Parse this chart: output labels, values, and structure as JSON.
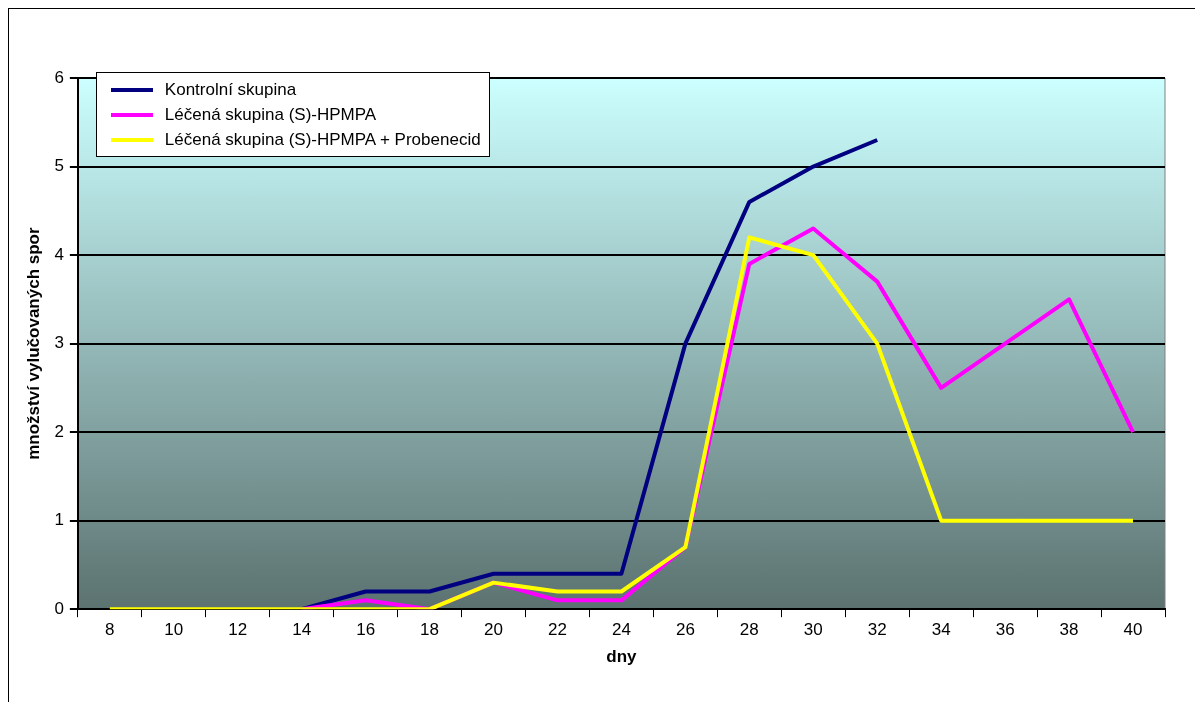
{
  "chart_data": {
    "type": "line",
    "xlabel": "dny",
    "ylabel": "množství vylučovaných spor",
    "categories": [
      "8",
      "10",
      "12",
      "14",
      "16",
      "18",
      "20",
      "22",
      "24",
      "26",
      "28",
      "30",
      "32",
      "34",
      "36",
      "38",
      "40"
    ],
    "series": [
      {
        "name": "Kontrolní skupina",
        "color": "#000080",
        "values": [
          null,
          null,
          null,
          0,
          0.2,
          0.2,
          0.4,
          0.4,
          0.4,
          3.0,
          4.6,
          5.0,
          5.3,
          null,
          null,
          null,
          null
        ]
      },
      {
        "name": "Léčená skupina (S)-HPMPA",
        "color": "#ff00ff",
        "values": [
          null,
          null,
          null,
          0,
          0.1,
          0,
          0.3,
          0.1,
          0.1,
          0.7,
          3.9,
          4.3,
          3.7,
          2.5,
          3.0,
          3.5,
          2.0
        ]
      },
      {
        "name": "Léčená skupina (S)-HPMPA + Probenecid",
        "color": "#ffff00",
        "values": [
          0,
          0,
          0,
          0,
          0,
          0,
          0.3,
          0.2,
          0.2,
          0.7,
          4.2,
          4.0,
          3.0,
          1.0,
          1.0,
          1.0,
          1.0
        ]
      }
    ],
    "ylim": [
      0,
      6
    ],
    "yticks": [
      0,
      1,
      2,
      3,
      4,
      5,
      6
    ],
    "grid": "y",
    "legend": "top left",
    "marker": "none",
    "line_style": "solid"
  }
}
